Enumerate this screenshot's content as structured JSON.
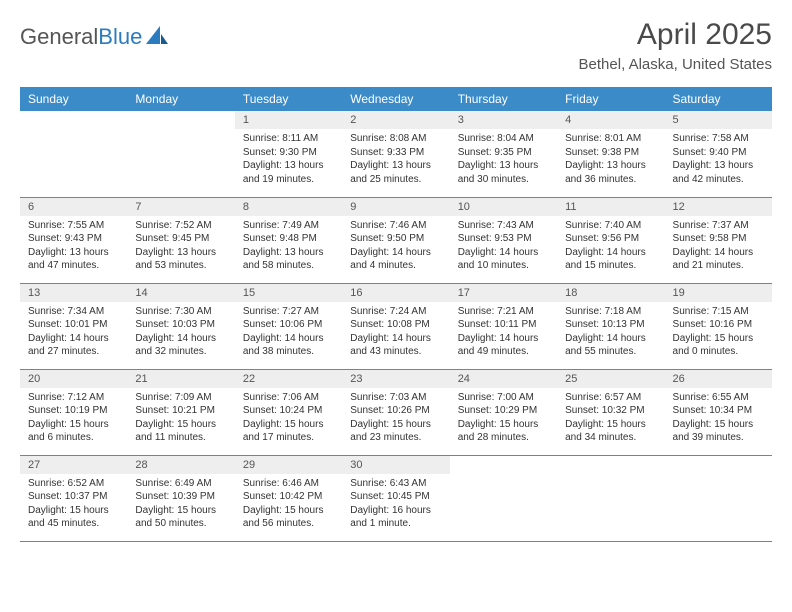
{
  "logo": {
    "text1": "General",
    "text2": "Blue"
  },
  "title": "April 2025",
  "location": "Bethel, Alaska, United States",
  "header_bg": "#3b8bc9",
  "daynum_bg": "#eeeeee",
  "border_color": "#5a8bb5",
  "weekdays": [
    "Sunday",
    "Monday",
    "Tuesday",
    "Wednesday",
    "Thursday",
    "Friday",
    "Saturday"
  ],
  "weeks": [
    [
      null,
      null,
      {
        "n": "1",
        "sunrise": "8:11 AM",
        "sunset": "9:30 PM",
        "daylight": "13 hours and 19 minutes."
      },
      {
        "n": "2",
        "sunrise": "8:08 AM",
        "sunset": "9:33 PM",
        "daylight": "13 hours and 25 minutes."
      },
      {
        "n": "3",
        "sunrise": "8:04 AM",
        "sunset": "9:35 PM",
        "daylight": "13 hours and 30 minutes."
      },
      {
        "n": "4",
        "sunrise": "8:01 AM",
        "sunset": "9:38 PM",
        "daylight": "13 hours and 36 minutes."
      },
      {
        "n": "5",
        "sunrise": "7:58 AM",
        "sunset": "9:40 PM",
        "daylight": "13 hours and 42 minutes."
      }
    ],
    [
      {
        "n": "6",
        "sunrise": "7:55 AM",
        "sunset": "9:43 PM",
        "daylight": "13 hours and 47 minutes."
      },
      {
        "n": "7",
        "sunrise": "7:52 AM",
        "sunset": "9:45 PM",
        "daylight": "13 hours and 53 minutes."
      },
      {
        "n": "8",
        "sunrise": "7:49 AM",
        "sunset": "9:48 PM",
        "daylight": "13 hours and 58 minutes."
      },
      {
        "n": "9",
        "sunrise": "7:46 AM",
        "sunset": "9:50 PM",
        "daylight": "14 hours and 4 minutes."
      },
      {
        "n": "10",
        "sunrise": "7:43 AM",
        "sunset": "9:53 PM",
        "daylight": "14 hours and 10 minutes."
      },
      {
        "n": "11",
        "sunrise": "7:40 AM",
        "sunset": "9:56 PM",
        "daylight": "14 hours and 15 minutes."
      },
      {
        "n": "12",
        "sunrise": "7:37 AM",
        "sunset": "9:58 PM",
        "daylight": "14 hours and 21 minutes."
      }
    ],
    [
      {
        "n": "13",
        "sunrise": "7:34 AM",
        "sunset": "10:01 PM",
        "daylight": "14 hours and 27 minutes."
      },
      {
        "n": "14",
        "sunrise": "7:30 AM",
        "sunset": "10:03 PM",
        "daylight": "14 hours and 32 minutes."
      },
      {
        "n": "15",
        "sunrise": "7:27 AM",
        "sunset": "10:06 PM",
        "daylight": "14 hours and 38 minutes."
      },
      {
        "n": "16",
        "sunrise": "7:24 AM",
        "sunset": "10:08 PM",
        "daylight": "14 hours and 43 minutes."
      },
      {
        "n": "17",
        "sunrise": "7:21 AM",
        "sunset": "10:11 PM",
        "daylight": "14 hours and 49 minutes."
      },
      {
        "n": "18",
        "sunrise": "7:18 AM",
        "sunset": "10:13 PM",
        "daylight": "14 hours and 55 minutes."
      },
      {
        "n": "19",
        "sunrise": "7:15 AM",
        "sunset": "10:16 PM",
        "daylight": "15 hours and 0 minutes."
      }
    ],
    [
      {
        "n": "20",
        "sunrise": "7:12 AM",
        "sunset": "10:19 PM",
        "daylight": "15 hours and 6 minutes."
      },
      {
        "n": "21",
        "sunrise": "7:09 AM",
        "sunset": "10:21 PM",
        "daylight": "15 hours and 11 minutes."
      },
      {
        "n": "22",
        "sunrise": "7:06 AM",
        "sunset": "10:24 PM",
        "daylight": "15 hours and 17 minutes."
      },
      {
        "n": "23",
        "sunrise": "7:03 AM",
        "sunset": "10:26 PM",
        "daylight": "15 hours and 23 minutes."
      },
      {
        "n": "24",
        "sunrise": "7:00 AM",
        "sunset": "10:29 PM",
        "daylight": "15 hours and 28 minutes."
      },
      {
        "n": "25",
        "sunrise": "6:57 AM",
        "sunset": "10:32 PM",
        "daylight": "15 hours and 34 minutes."
      },
      {
        "n": "26",
        "sunrise": "6:55 AM",
        "sunset": "10:34 PM",
        "daylight": "15 hours and 39 minutes."
      }
    ],
    [
      {
        "n": "27",
        "sunrise": "6:52 AM",
        "sunset": "10:37 PM",
        "daylight": "15 hours and 45 minutes."
      },
      {
        "n": "28",
        "sunrise": "6:49 AM",
        "sunset": "10:39 PM",
        "daylight": "15 hours and 50 minutes."
      },
      {
        "n": "29",
        "sunrise": "6:46 AM",
        "sunset": "10:42 PM",
        "daylight": "15 hours and 56 minutes."
      },
      {
        "n": "30",
        "sunrise": "6:43 AM",
        "sunset": "10:45 PM",
        "daylight": "16 hours and 1 minute."
      },
      null,
      null,
      null
    ]
  ],
  "labels": {
    "sunrise": "Sunrise:",
    "sunset": "Sunset:",
    "daylight": "Daylight:"
  }
}
